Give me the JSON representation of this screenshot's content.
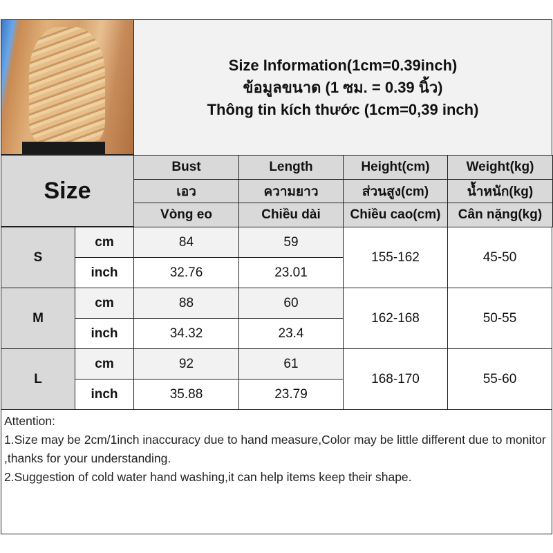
{
  "header": {
    "title_lines": [
      "Size Information(1cm=0.39inch)",
      "ข้อมูลขนาด (1 ซม. = 0.39 นิ้ว)",
      "Thông tin kích thước (1cm=0,39 inch)"
    ],
    "size_label": "Size"
  },
  "columns": [
    {
      "en": "Bust",
      "th": "เอว",
      "vi": "Vòng eo"
    },
    {
      "en": "Length",
      "th": "ความยาว",
      "vi": "Chiều dài"
    },
    {
      "en": "Height(cm)",
      "th": "ส่วนสูง(cm)",
      "vi": "Chiều cao(cm)"
    },
    {
      "en": "Weight(kg)",
      "th": "น้ำหนัก(kg)",
      "vi": "Cân nặng(kg)"
    }
  ],
  "rows": [
    {
      "size": "S",
      "cm_label": "cm",
      "inch_label": "inch",
      "bust_cm": "84",
      "length_cm": "59",
      "bust_inch": "32.76",
      "length_inch": "23.01",
      "height": "155-162",
      "weight": "45-50"
    },
    {
      "size": "M",
      "cm_label": "cm",
      "inch_label": "inch",
      "bust_cm": "88",
      "length_cm": "60",
      "bust_inch": "34.32",
      "length_inch": "23.4",
      "height": "162-168",
      "weight": "50-55"
    },
    {
      "size": "L",
      "cm_label": "cm",
      "inch_label": "inch",
      "bust_cm": "92",
      "length_cm": "61",
      "bust_inch": "35.88",
      "length_inch": "23.79",
      "height": "168-170",
      "weight": "55-60"
    }
  ],
  "attention": {
    "heading": "Attention:",
    "line1": "1.Size may be 2cm/1inch inaccuracy due to hand measure,Color may be little different due to monitor ,thanks for your understanding.",
    "line2": "2.Suggestion of cold water hand washing,it can help items keep their shape."
  }
}
